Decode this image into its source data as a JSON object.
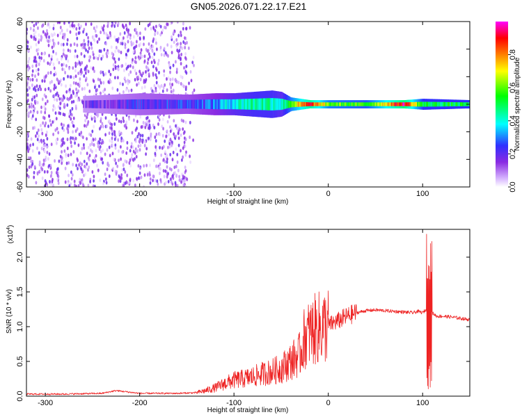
{
  "title": "GN05.2026.071.22.17.E21",
  "colors": {
    "snr_line": "#ee2222",
    "colormap": [
      "#ffffff",
      "#d8b8ff",
      "#8a2be2",
      "#3030ff",
      "#00ffff",
      "#00ff00",
      "#ffff00",
      "#ff8000",
      "#ff0000",
      "#ff00ff"
    ]
  },
  "chart_data": [
    {
      "type": "heatmap",
      "xlabel": "Height of straight line (km)",
      "ylabel": "Frequency (Hz)",
      "xlim": [
        -320,
        150
      ],
      "ylim": [
        -60,
        60
      ],
      "x_ticks": [
        "-300",
        "-200",
        "-100",
        "0",
        "100"
      ],
      "y_ticks": [
        "60",
        "40",
        "20",
        "0",
        "-20",
        "-40",
        "-60"
      ],
      "colorbar": {
        "label": "Normalized spectral amplitude",
        "range": [
          0,
          1
        ],
        "ticks": [
          "0.0",
          "0.2",
          "0.4",
          "0.6",
          "0.8"
        ]
      },
      "band": [
        {
          "x": -260,
          "width": 6,
          "amp": 0.15
        },
        {
          "x": -200,
          "width": 8,
          "amp": 0.22
        },
        {
          "x": -150,
          "width": 7,
          "amp": 0.25
        },
        {
          "x": -120,
          "width": 8,
          "amp": 0.3
        },
        {
          "x": -100,
          "width": 8,
          "amp": 0.4
        },
        {
          "x": -80,
          "width": 9,
          "amp": 0.45
        },
        {
          "x": -60,
          "width": 10,
          "amp": 0.45
        },
        {
          "x": -50,
          "width": 9,
          "amp": 0.4
        },
        {
          "x": -40,
          "width": 5,
          "amp": 0.6
        },
        {
          "x": -20,
          "width": 3,
          "amp": 0.9
        },
        {
          "x": 0,
          "width": 3,
          "amp": 0.6
        },
        {
          "x": 40,
          "width": 3,
          "amp": 0.55
        },
        {
          "x": 80,
          "width": 3,
          "amp": 0.95
        },
        {
          "x": 100,
          "width": 4,
          "amp": 0.5
        },
        {
          "x": 150,
          "width": 3,
          "amp": 0.5
        }
      ]
    },
    {
      "type": "line",
      "xlabel": "Height of straight line (km)",
      "ylabel": "SNR (10 * v/v)",
      "scale_label": "(x10",
      "scale_exp": "4",
      "xlim": [
        -320,
        150
      ],
      "ylim": [
        0,
        24000
      ],
      "x_ticks": [
        "-300",
        "-200",
        "-100",
        "0",
        "100"
      ],
      "y_ticks": [
        "0.0",
        "0.5",
        "1.0",
        "1.5",
        "2.0"
      ],
      "series": [
        {
          "x": [
            -320,
            -280,
            -240,
            -225,
            -200,
            -160,
            -140,
            -130,
            -120,
            -110,
            -100,
            -90,
            -80,
            -70,
            -60,
            -50,
            -40,
            -30,
            -25,
            -20,
            -15,
            -10,
            -5,
            0,
            10,
            20,
            30,
            40,
            50,
            60,
            70,
            80,
            90,
            95,
            100,
            104,
            107,
            110,
            115,
            120,
            130,
            140,
            150
          ],
          "y": [
            300,
            300,
            400,
            800,
            400,
            400,
            500,
            800,
            1200,
            1800,
            2300,
            2500,
            2800,
            3200,
            3500,
            4000,
            5000,
            6000,
            8500,
            9000,
            9500,
            9800,
            10000,
            10200,
            10800,
            11500,
            12000,
            12300,
            12400,
            12300,
            12200,
            12100,
            12000,
            12200,
            12000,
            12500,
            11500,
            12000,
            11500,
            11500,
            11400,
            11200,
            11000
          ],
          "spike": {
            "x": 107,
            "max": 24000,
            "min": 1000
          }
        }
      ]
    }
  ]
}
